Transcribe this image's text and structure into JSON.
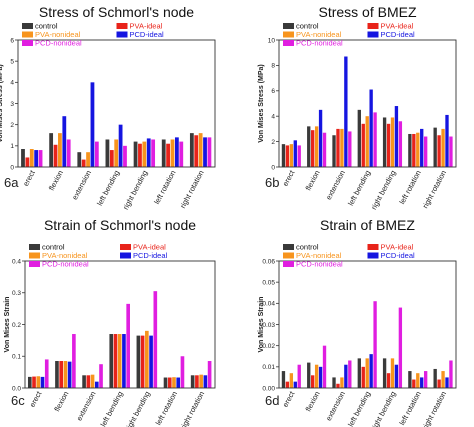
{
  "series_colors": {
    "control": "#3a3a3a",
    "PVA-ideal": "#e8231a",
    "PVA-nonideal": "#f7941d",
    "PCD-ideal": "#1515e0",
    "PCD-nonideal": "#e01ee0"
  },
  "chart_data": [
    {
      "panel": "6a",
      "type": "bar",
      "title": "Stress of Schmorl's node",
      "ylabel": "Von Mises Stress (MPa)",
      "ylim": [
        0,
        6
      ],
      "yticks": [
        "0",
        "1",
        "2",
        "3",
        "4",
        "5",
        "6"
      ],
      "categories": [
        "erect",
        "flexion",
        "extension",
        "left bending",
        "right bending",
        "left rotation",
        "right rotation"
      ],
      "legend": [
        "control",
        "PVA-ideal",
        "PVA-nonideal",
        "PCD-ideal",
        "PCD-nonideal"
      ],
      "series": [
        {
          "name": "control",
          "values": [
            0.85,
            1.6,
            0.7,
            1.3,
            1.2,
            1.3,
            1.6
          ]
        },
        {
          "name": "PVA-ideal",
          "values": [
            0.45,
            1.05,
            0.35,
            0.8,
            1.1,
            1.1,
            1.5
          ]
        },
        {
          "name": "PVA-nonideal",
          "values": [
            0.85,
            1.6,
            0.7,
            1.3,
            1.2,
            1.3,
            1.6
          ]
        },
        {
          "name": "PCD-ideal",
          "values": [
            0.8,
            2.4,
            4.0,
            2.0,
            1.35,
            1.4,
            1.4
          ]
        },
        {
          "name": "PCD-nonideal",
          "values": [
            0.8,
            1.3,
            1.2,
            1.0,
            1.3,
            1.2,
            1.4
          ]
        }
      ]
    },
    {
      "panel": "6b",
      "type": "bar",
      "title": "Stress of BMEZ",
      "ylabel": "Von Mises Stress (MPa)",
      "ylim": [
        0,
        10
      ],
      "yticks": [
        "0",
        "2",
        "4",
        "6",
        "8",
        "10"
      ],
      "categories": [
        "erect",
        "flexion",
        "extension",
        "left bending",
        "right bending",
        "left rotation",
        "right rotation"
      ],
      "legend": [
        "control",
        "PVA-ideal",
        "PVA-nonideal",
        "PCD-ideal",
        "PCD-nonideal"
      ],
      "series": [
        {
          "name": "control",
          "values": [
            1.8,
            3.2,
            2.5,
            4.5,
            3.9,
            2.6,
            3.1
          ]
        },
        {
          "name": "PVA-ideal",
          "values": [
            1.7,
            2.9,
            3.0,
            3.4,
            3.4,
            2.6,
            2.5
          ]
        },
        {
          "name": "PVA-nonideal",
          "values": [
            1.8,
            3.2,
            3.0,
            4.0,
            3.9,
            2.7,
            3.0
          ]
        },
        {
          "name": "PCD-ideal",
          "values": [
            2.1,
            4.5,
            8.7,
            6.1,
            4.8,
            3.0,
            4.1
          ]
        },
        {
          "name": "PCD-nonideal",
          "values": [
            1.7,
            2.7,
            2.8,
            4.3,
            3.6,
            2.4,
            2.4
          ]
        }
      ]
    },
    {
      "panel": "6c",
      "type": "bar",
      "title": "Strain of Schmorl's node",
      "ylabel": "Von Mises Strain",
      "ylim": [
        0,
        0.4
      ],
      "yticks": [
        "0.0",
        "0.1",
        "0.2",
        "0.3",
        "0.4"
      ],
      "categories": [
        "erect",
        "flexion",
        "extension",
        "left bending",
        "right bending",
        "left rotation",
        "right rotation"
      ],
      "legend": [
        "control",
        "PVA-ideal",
        "PVA-nonideal",
        "PCD-ideal",
        "PCD-nonideal"
      ],
      "series": [
        {
          "name": "control",
          "values": [
            0.035,
            0.085,
            0.04,
            0.17,
            0.165,
            0.033,
            0.04
          ]
        },
        {
          "name": "PVA-ideal",
          "values": [
            0.036,
            0.085,
            0.04,
            0.17,
            0.165,
            0.033,
            0.04
          ]
        },
        {
          "name": "PVA-nonideal",
          "values": [
            0.037,
            0.085,
            0.042,
            0.17,
            0.18,
            0.034,
            0.042
          ]
        },
        {
          "name": "PCD-ideal",
          "values": [
            0.035,
            0.083,
            0.02,
            0.17,
            0.165,
            0.033,
            0.04
          ]
        },
        {
          "name": "PCD-nonideal",
          "values": [
            0.09,
            0.17,
            0.075,
            0.265,
            0.305,
            0.1,
            0.085
          ]
        }
      ]
    },
    {
      "panel": "6d",
      "type": "bar",
      "title": "Strain of BMEZ",
      "ylabel": "Von Mises Strain",
      "ylim": [
        0,
        0.06
      ],
      "yticks": [
        "0.00",
        "0.01",
        "0.02",
        "0.03",
        "0.04",
        "0.05",
        "0.06"
      ],
      "categories": [
        "erect",
        "flexion",
        "extension",
        "left bending",
        "right bending",
        "left rotation",
        "right rotation"
      ],
      "legend": [
        "control",
        "PVA-ideal",
        "PVA-nonideal",
        "PCD-ideal",
        "PCD-nonideal"
      ],
      "series": [
        {
          "name": "control",
          "values": [
            0.008,
            0.012,
            0.005,
            0.014,
            0.014,
            0.008,
            0.009
          ]
        },
        {
          "name": "PVA-ideal",
          "values": [
            0.003,
            0.006,
            0.002,
            0.01,
            0.007,
            0.004,
            0.004
          ]
        },
        {
          "name": "PVA-nonideal",
          "values": [
            0.007,
            0.011,
            0.005,
            0.014,
            0.014,
            0.007,
            0.008
          ]
        },
        {
          "name": "PCD-ideal",
          "values": [
            0.003,
            0.01,
            0.011,
            0.016,
            0.011,
            0.005,
            0.005
          ]
        },
        {
          "name": "PCD-nonideal",
          "values": [
            0.011,
            0.02,
            0.013,
            0.041,
            0.038,
            0.008,
            0.013
          ]
        }
      ]
    }
  ]
}
